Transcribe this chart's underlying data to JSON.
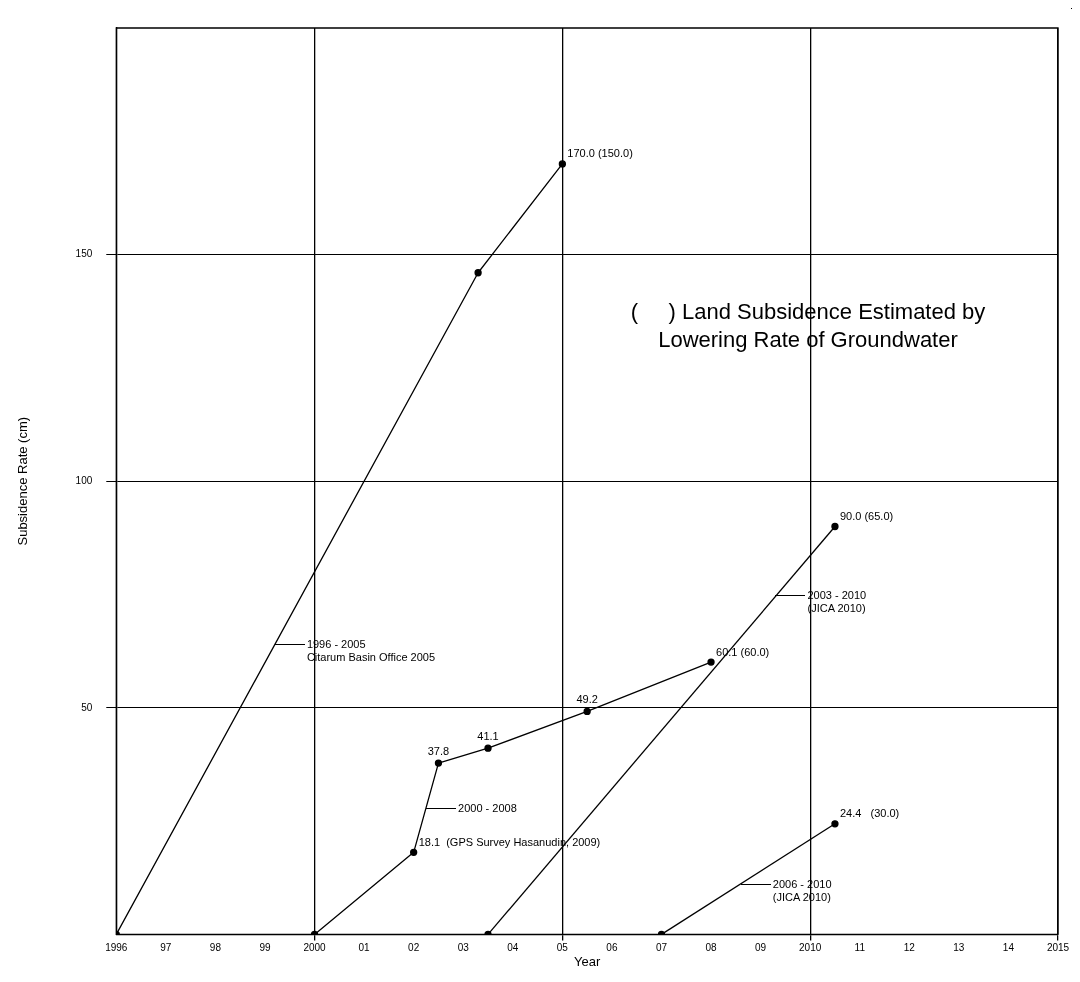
{
  "chart_data": {
    "type": "line",
    "xlabel": "Year",
    "ylabel": "Subsidence Rate (cm)",
    "xlim": [
      1996,
      2015
    ],
    "ylim": [
      0,
      200
    ],
    "xticks": [
      {
        "value": 1996,
        "label": "1996"
      },
      {
        "value": 1997,
        "label": "97"
      },
      {
        "value": 1998,
        "label": "98"
      },
      {
        "value": 1999,
        "label": "99"
      },
      {
        "value": 2000,
        "label": "2000"
      },
      {
        "value": 2001,
        "label": "01"
      },
      {
        "value": 2002,
        "label": "02"
      },
      {
        "value": 2003,
        "label": "03"
      },
      {
        "value": 2004,
        "label": "04"
      },
      {
        "value": 2005,
        "label": "05"
      },
      {
        "value": 2006,
        "label": "06"
      },
      {
        "value": 2007,
        "label": "07"
      },
      {
        "value": 2008,
        "label": "08"
      },
      {
        "value": 2009,
        "label": "09"
      },
      {
        "value": 2010,
        "label": "2010"
      },
      {
        "value": 2011,
        "label": "11"
      },
      {
        "value": 2012,
        "label": "12"
      },
      {
        "value": 2013,
        "label": "13"
      },
      {
        "value": 2014,
        "label": "14"
      },
      {
        "value": 2015,
        "label": "2015"
      }
    ],
    "yticks": [
      50,
      100,
      150
    ],
    "grid": true,
    "marker": "circle",
    "line_style": "solid",
    "legend": false,
    "series": [
      {
        "color": "#000000",
        "x": [
          1996,
          2003.3,
          2005
        ],
        "values": [
          0,
          146,
          170.0
        ],
        "value_labels": [
          null,
          null,
          "170.0 (150.0)"
        ]
      },
      {
        "color": "#000000",
        "x": [
          2000,
          2002,
          2002.5,
          2003.5,
          2005.5,
          2008
        ],
        "values": [
          0,
          18.1,
          37.8,
          41.1,
          49.2,
          60.1
        ],
        "value_labels": [
          null,
          "18.1  (GPS Survey Hasanudin, 2009)",
          "37.8",
          "41.1",
          "49.2",
          "60.1 (60.0)"
        ]
      },
      {
        "color": "#000000",
        "x": [
          2003.5,
          2010.5
        ],
        "values": [
          0,
          90.0
        ],
        "value_labels": [
          null,
          "90.0 (65.0)"
        ]
      },
      {
        "color": "#000000",
        "x": [
          2007,
          2010.5
        ],
        "values": [
          0,
          24.4
        ],
        "value_labels": [
          null,
          "24.4   (30.0)"
        ]
      }
    ],
    "annotations": [
      {
        "text": "1996 - 2005\nCitarum Basin Office 2005",
        "x": 1999.2,
        "y": 64
      },
      {
        "text": "2000 - 2008",
        "x": 2002.25,
        "y": 28
      },
      {
        "text": "2003 - 2010\n(JICA 2010)",
        "x": 2009.3,
        "y": 75
      },
      {
        "text": "2006 - 2010\n(JICA 2010)",
        "x": 2008.6,
        "y": 11.2
      },
      "(     ) Land Subsidence Estimated by Lowering Rate of Groundwater"
    ]
  }
}
